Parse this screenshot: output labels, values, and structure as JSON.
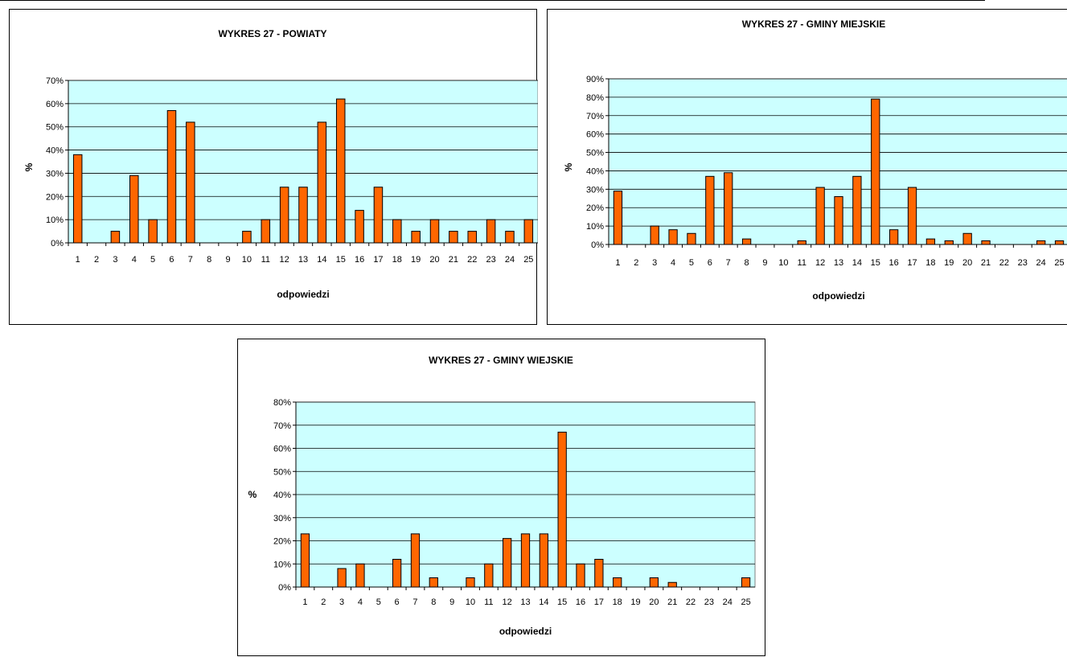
{
  "chart_data": [
    {
      "type": "bar",
      "title": "WYKRES 27 - POWIATY",
      "xlabel": "odpowiedzi",
      "ylabel": "%",
      "ylim": [
        0,
        70
      ],
      "yticks": [
        "0%",
        "10%",
        "20%",
        "30%",
        "40%",
        "50%",
        "60%",
        "70%"
      ],
      "categories": [
        "1",
        "2",
        "3",
        "4",
        "5",
        "6",
        "7",
        "8",
        "9",
        "10",
        "11",
        "12",
        "13",
        "14",
        "15",
        "16",
        "17",
        "18",
        "19",
        "20",
        "21",
        "22",
        "23",
        "24",
        "25"
      ],
      "values": [
        38,
        0,
        5,
        29,
        10,
        57,
        52,
        0,
        0,
        5,
        10,
        24,
        24,
        52,
        62,
        14,
        24,
        10,
        5,
        10,
        5,
        5,
        10,
        5,
        10
      ],
      "grid": true
    },
    {
      "type": "bar",
      "title": "WYKRES 27 - GMINY MIEJSKIE",
      "xlabel": "odpowiedzi",
      "ylabel": "%",
      "ylim": [
        0,
        90
      ],
      "yticks": [
        "0%",
        "10%",
        "20%",
        "30%",
        "40%",
        "50%",
        "60%",
        "70%",
        "80%",
        "90%"
      ],
      "categories": [
        "1",
        "2",
        "3",
        "4",
        "5",
        "6",
        "7",
        "8",
        "9",
        "10",
        "11",
        "12",
        "13",
        "14",
        "15",
        "16",
        "17",
        "18",
        "19",
        "20",
        "21",
        "22",
        "23",
        "24",
        "25"
      ],
      "values": [
        29,
        0,
        10,
        8,
        6,
        37,
        39,
        3,
        0,
        0,
        2,
        31,
        26,
        37,
        79,
        8,
        31,
        3,
        2,
        6,
        2,
        0,
        0,
        2,
        2
      ],
      "grid": true
    },
    {
      "type": "bar",
      "title": "WYKRES 27 - GMINY WIEJSKIE",
      "xlabel": "odpowiedzi",
      "ylabel": "%",
      "ylim": [
        0,
        80
      ],
      "yticks": [
        "0%",
        "10%",
        "20%",
        "30%",
        "40%",
        "50%",
        "60%",
        "70%",
        "80%"
      ],
      "categories": [
        "1",
        "2",
        "3",
        "4",
        "5",
        "6",
        "7",
        "8",
        "9",
        "10",
        "11",
        "12",
        "13",
        "14",
        "15",
        "16",
        "17",
        "18",
        "19",
        "20",
        "21",
        "22",
        "23",
        "24",
        "25"
      ],
      "values": [
        23,
        0,
        8,
        10,
        0,
        12,
        23,
        4,
        0,
        4,
        10,
        21,
        23,
        23,
        67,
        10,
        12,
        4,
        0,
        4,
        2,
        0,
        0,
        0,
        4
      ],
      "grid": true
    }
  ],
  "colors": {
    "plot_background": "#ccffff",
    "bar_fill": "#ff6600",
    "bar_stroke": "#000000",
    "gridline": "#000000"
  }
}
